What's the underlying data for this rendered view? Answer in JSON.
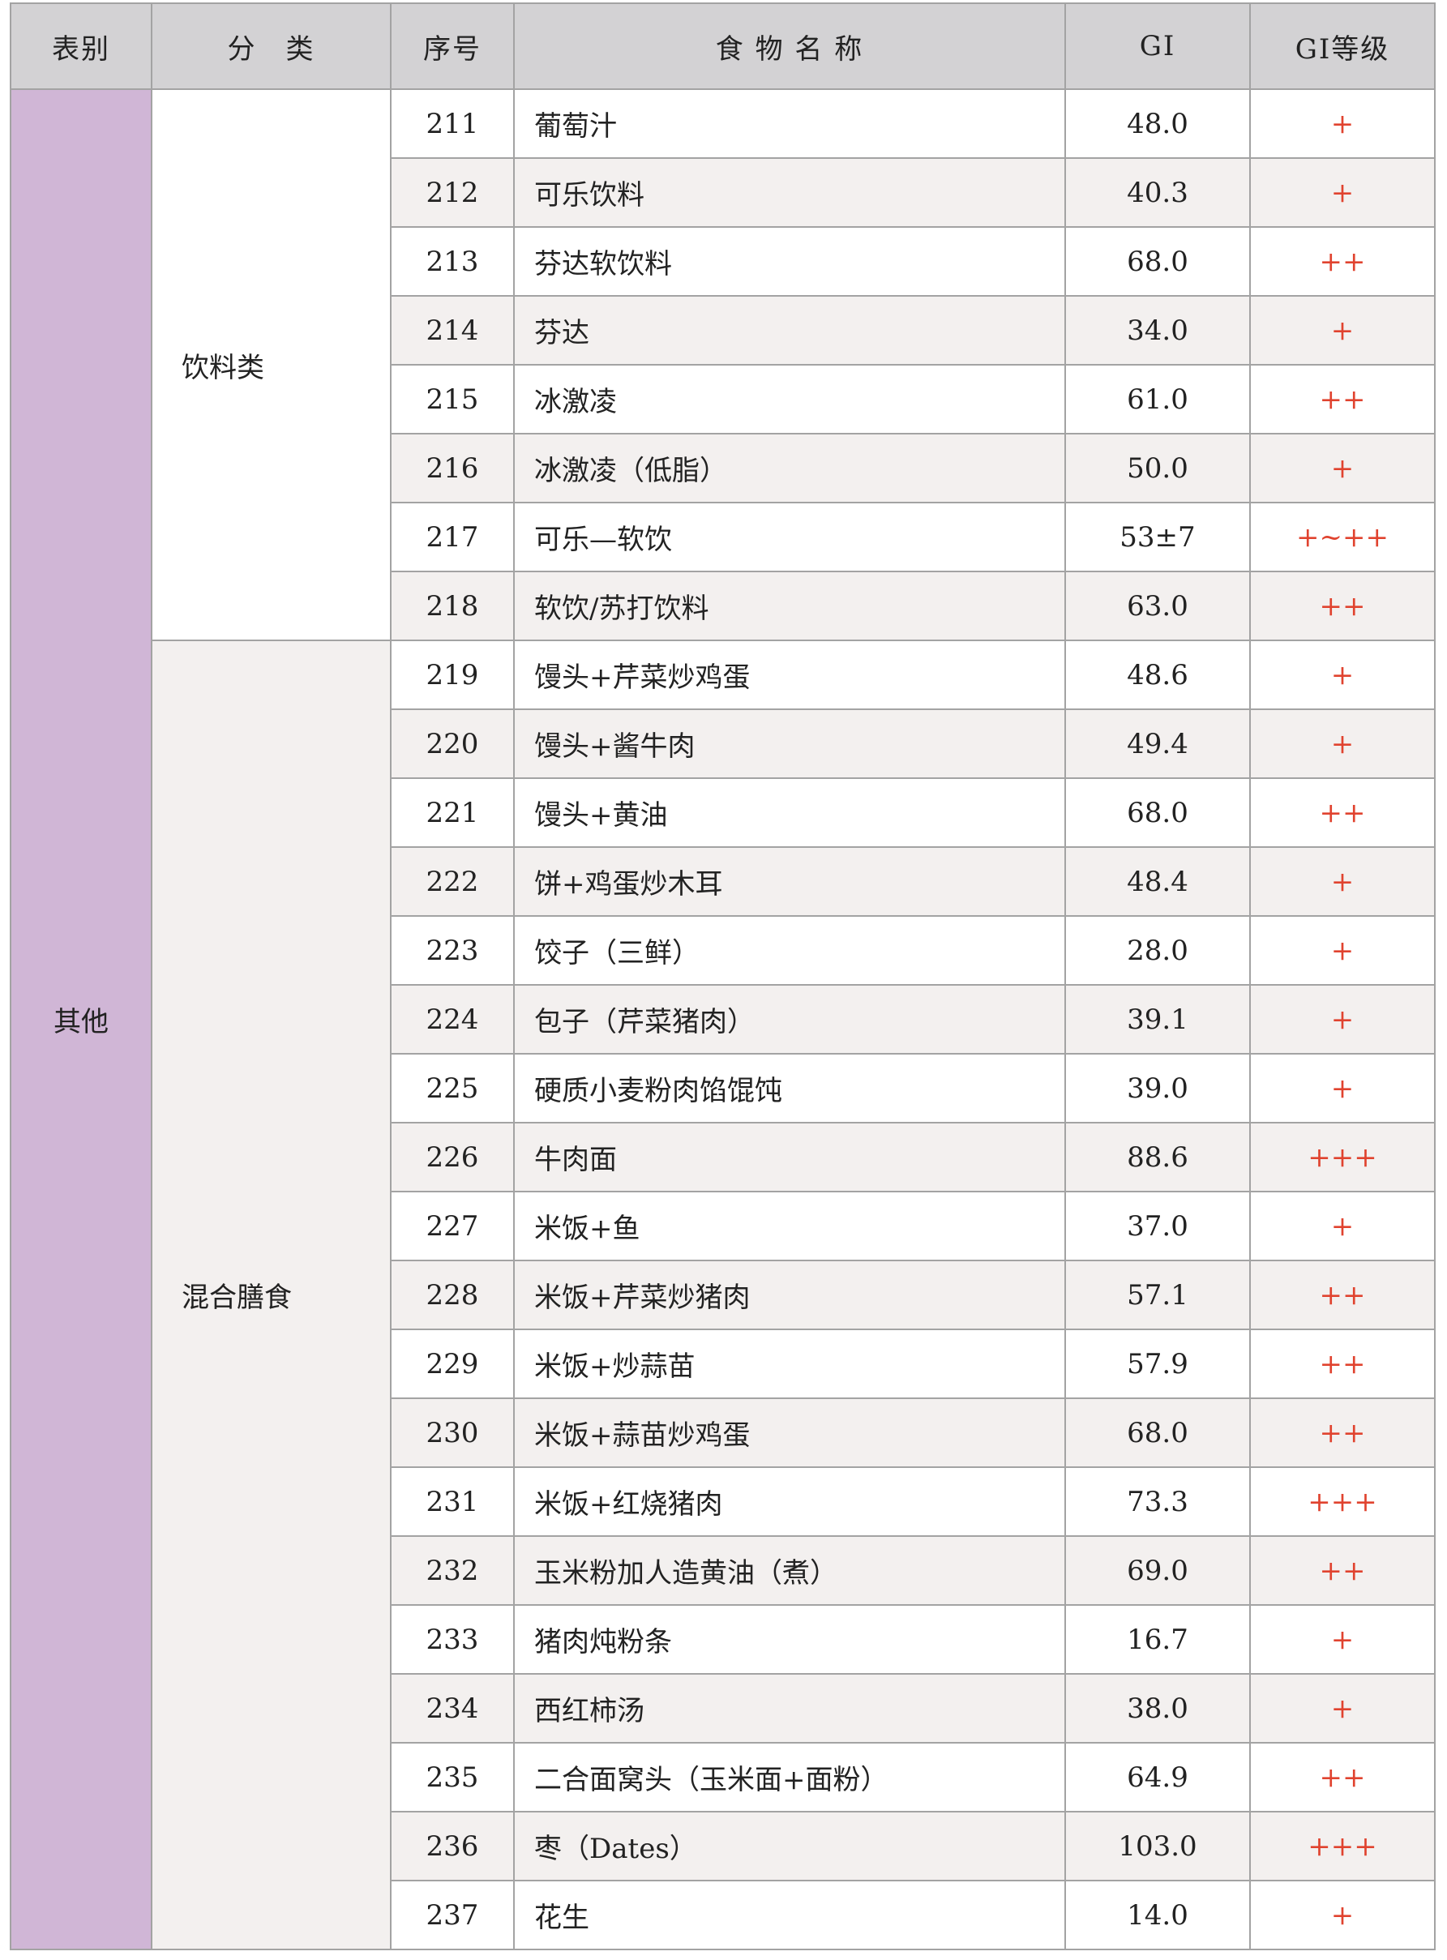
{
  "headers": [
    "表别",
    "分　类",
    "序号",
    "食 物 名 称",
    "GI",
    "GI等级"
  ],
  "sheet": "其他",
  "colors": {
    "header_bg": "#d3d2d4",
    "sheet_bg": "#d0b6d6",
    "alt_row_bg": "#f3f0ef",
    "level_text": "#e0432f",
    "border": "#a3a3a3"
  },
  "categories": [
    {
      "name": "饮料类",
      "rows": [
        {
          "no": "211",
          "name": "葡萄汁",
          "gi": "48.0",
          "level": "+"
        },
        {
          "no": "212",
          "name": "可乐饮料",
          "gi": "40.3",
          "level": "+"
        },
        {
          "no": "213",
          "name": "芬达软饮料",
          "gi": "68.0",
          "level": "++"
        },
        {
          "no": "214",
          "name": "芬达",
          "gi": "34.0",
          "level": "+"
        },
        {
          "no": "215",
          "name": "冰激凌",
          "gi": "61.0",
          "level": "++"
        },
        {
          "no": "216",
          "name": "冰激凌（低脂）",
          "gi": "50.0",
          "level": "+"
        },
        {
          "no": "217",
          "name": "可乐—软饮",
          "gi": "53±7",
          "level": "+~++"
        },
        {
          "no": "218",
          "name": "软饮/苏打饮料",
          "gi": "63.0",
          "level": "++"
        }
      ]
    },
    {
      "name": "混合膳食",
      "rows": [
        {
          "no": "219",
          "name": "馒头+芹菜炒鸡蛋",
          "gi": "48.6",
          "level": "+"
        },
        {
          "no": "220",
          "name": "馒头+酱牛肉",
          "gi": "49.4",
          "level": "+"
        },
        {
          "no": "221",
          "name": "馒头+黄油",
          "gi": "68.0",
          "level": "++"
        },
        {
          "no": "222",
          "name": "饼+鸡蛋炒木耳",
          "gi": "48.4",
          "level": "+"
        },
        {
          "no": "223",
          "name": "饺子（三鲜）",
          "gi": "28.0",
          "level": "+"
        },
        {
          "no": "224",
          "name": "包子（芹菜猪肉）",
          "gi": "39.1",
          "level": "+"
        },
        {
          "no": "225",
          "name": "硬质小麦粉肉馅馄饨",
          "gi": "39.0",
          "level": "+"
        },
        {
          "no": "226",
          "name": "牛肉面",
          "gi": "88.6",
          "level": "+++"
        },
        {
          "no": "227",
          "name": "米饭+鱼",
          "gi": "37.0",
          "level": "+"
        },
        {
          "no": "228",
          "name": "米饭+芹菜炒猪肉",
          "gi": "57.1",
          "level": "++"
        },
        {
          "no": "229",
          "name": "米饭+炒蒜苗",
          "gi": "57.9",
          "level": "++"
        },
        {
          "no": "230",
          "name": "米饭+蒜苗炒鸡蛋",
          "gi": "68.0",
          "level": "++"
        },
        {
          "no": "231",
          "name": "米饭+红烧猪肉",
          "gi": "73.3",
          "level": "+++"
        },
        {
          "no": "232",
          "name": "玉米粉加人造黄油（煮）",
          "gi": "69.0",
          "level": "++"
        },
        {
          "no": "233",
          "name": "猪肉炖粉条",
          "gi": "16.7",
          "level": "+"
        },
        {
          "no": "234",
          "name": "西红柿汤",
          "gi": "38.0",
          "level": "+"
        },
        {
          "no": "235",
          "name": "二合面窝头（玉米面+面粉）",
          "gi": "64.9",
          "level": "++"
        },
        {
          "no": "236",
          "name": "枣（Dates）",
          "gi": "103.0",
          "level": "+++"
        },
        {
          "no": "237",
          "name": "花生",
          "gi": "14.0",
          "level": "+"
        }
      ]
    }
  ]
}
